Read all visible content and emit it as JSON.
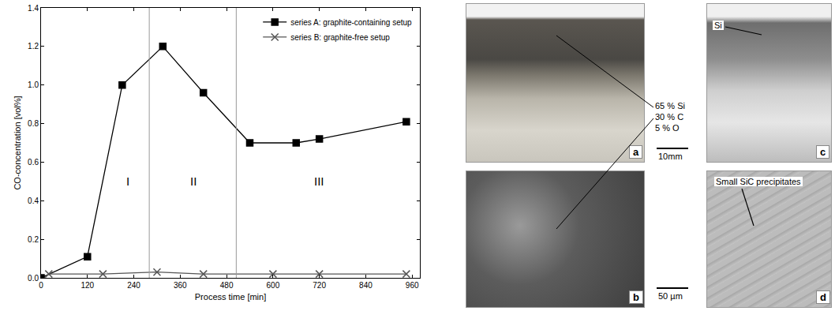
{
  "chart_data": {
    "type": "line",
    "x_label": "Process time [min]",
    "y_label": "CO-concentration [vol%]",
    "series": [
      {
        "name": "series A: graphite-containing setup",
        "color": "#000000",
        "marker": "square",
        "line_style": "solid",
        "x": [
          0,
          120,
          210,
          315,
          420,
          540,
          660,
          720,
          945
        ],
        "values": [
          0.0,
          0.11,
          1.0,
          1.2,
          0.96,
          0.7,
          0.7,
          0.72,
          0.81
        ]
      },
      {
        "name": "series B: graphite-free setup",
        "color": "#555555",
        "marker": "x",
        "line_style": "solid",
        "x": [
          20,
          160,
          300,
          420,
          600,
          720,
          945
        ],
        "values": [
          0.02,
          0.02,
          0.03,
          0.02,
          0.02,
          0.02,
          0.02
        ]
      }
    ],
    "phase_boundaries": [
      280,
      505
    ],
    "phase_labels": [
      {
        "text": "I",
        "x": 225,
        "y": 0.5
      },
      {
        "text": "II",
        "x": 395,
        "y": 0.5
      },
      {
        "text": "III",
        "x": 720,
        "y": 0.5
      }
    ],
    "xlim": [
      0,
      980
    ],
    "xticks": [
      0,
      120,
      240,
      360,
      480,
      600,
      720,
      840,
      960
    ],
    "ylim": [
      0,
      1.4
    ],
    "yticks": [
      {
        "value": 0,
        "label": "0.0"
      },
      0.2,
      0.4,
      0.6,
      0.8,
      {
        "value": 1,
        "label": "1.0"
      },
      1.2,
      1.4
    ],
    "legend": "top right",
    "grid": false
  },
  "photos": [
    {
      "letter": "a"
    },
    {
      "letter": "b"
    },
    {
      "letter": "c",
      "label": "Si"
    },
    {
      "letter": "d",
      "label": "Small SiC precipitates"
    }
  ],
  "composition": [
    "65 % Si",
    "30 % C",
    "5 % O"
  ],
  "scale_bars": [
    "10mm",
    "50 µm"
  ]
}
